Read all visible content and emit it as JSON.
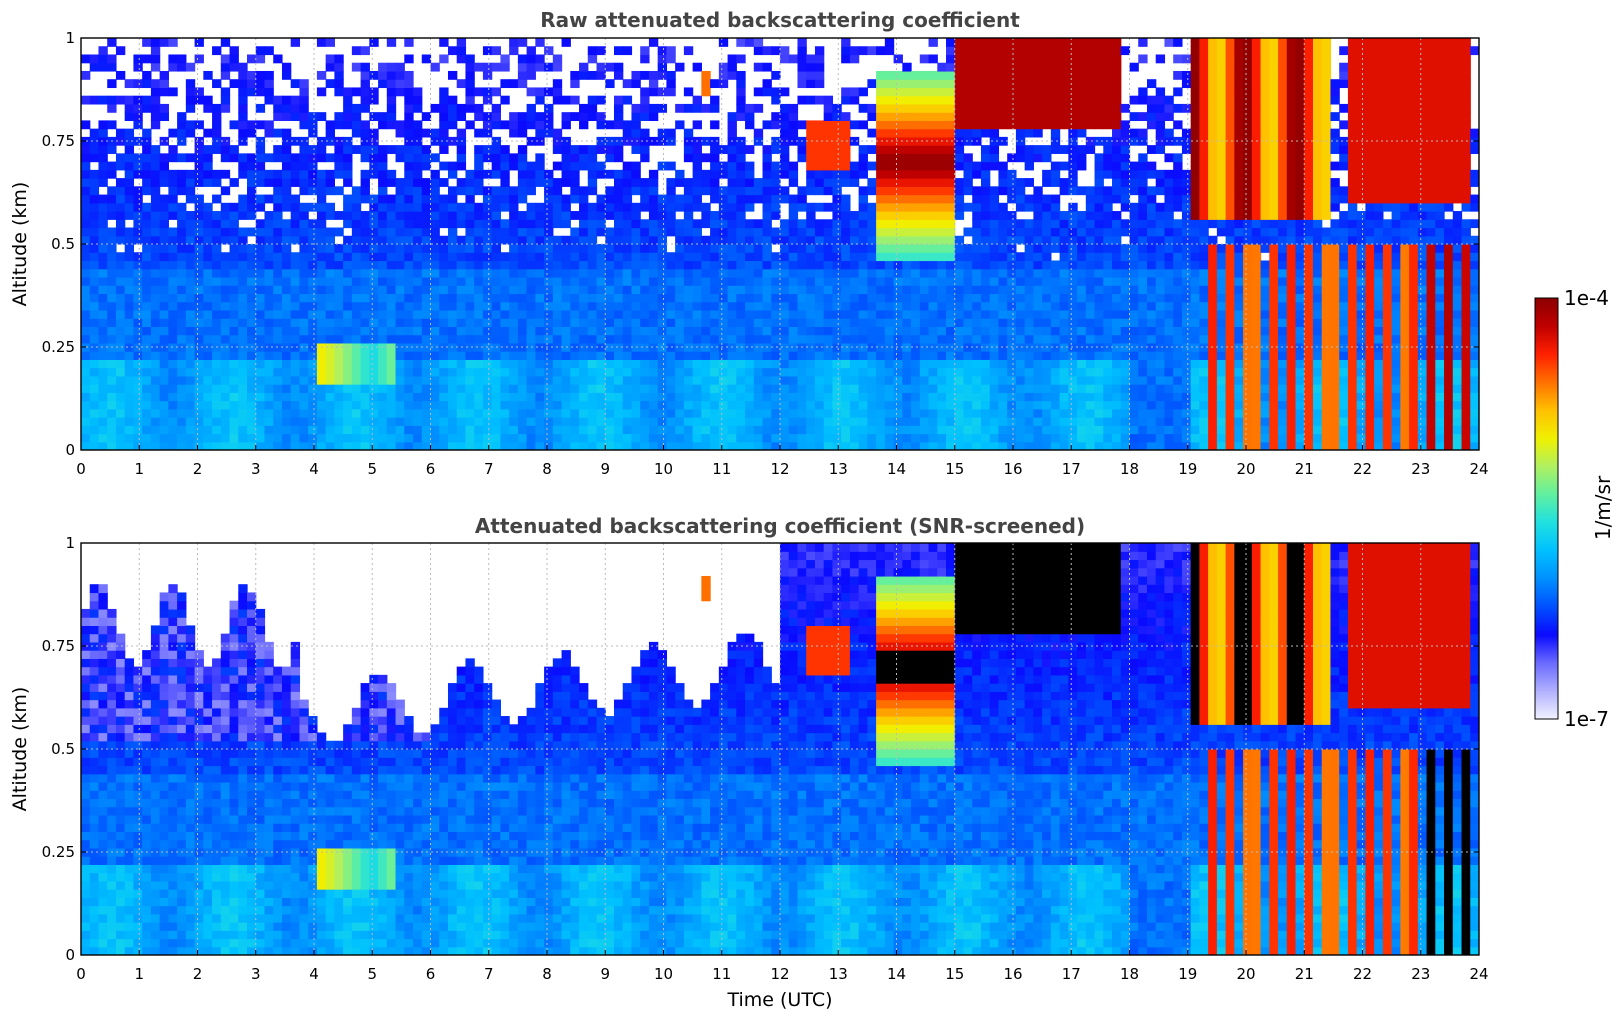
{
  "colormap": {
    "label": "1/m/sr",
    "max_label": "1e-4",
    "min_label": "1e-7",
    "stops": [
      "#f2f2ff",
      "#b0b0ff",
      "#6a6aff",
      "#0a0aff",
      "#0050ff",
      "#0090ff",
      "#00c0ff",
      "#20e0e0",
      "#60f0a0",
      "#b0f060",
      "#f0f000",
      "#ffc000",
      "#ff7000",
      "#ff2000",
      "#c00000",
      "#8b0000"
    ],
    "nan_color": "#ffffff",
    "saturation_color_screened": "#000000"
  },
  "chart_data": [
    {
      "type": "heatmap",
      "title": "Raw attenuated backscattering coefficient",
      "xlabel": "",
      "ylabel": "Altitude (km)",
      "xlim": [
        0,
        24
      ],
      "ylim": [
        0,
        1
      ],
      "xticks": [
        "0",
        "1",
        "2",
        "3",
        "4",
        "5",
        "6",
        "7",
        "8",
        "9",
        "10",
        "11",
        "12",
        "13",
        "14",
        "15",
        "16",
        "17",
        "18",
        "19",
        "20",
        "21",
        "22",
        "23",
        "24"
      ],
      "yticks": [
        "0",
        "0.25",
        "0.5",
        "0.75",
        "1"
      ],
      "grid": true,
      "units": "1/m/sr",
      "color_range": [
        "1e-7",
        "1e-4"
      ],
      "screened": false
    },
    {
      "type": "heatmap",
      "title": "Attenuated backscattering coefficient (SNR-screened)",
      "xlabel": "Time (UTC)",
      "ylabel": "Altitude (km)",
      "xlim": [
        0,
        24
      ],
      "ylim": [
        0,
        1
      ],
      "xticks": [
        "0",
        "1",
        "2",
        "3",
        "4",
        "5",
        "6",
        "7",
        "8",
        "9",
        "10",
        "11",
        "12",
        "13",
        "14",
        "15",
        "16",
        "17",
        "18",
        "19",
        "20",
        "21",
        "22",
        "23",
        "24"
      ],
      "yticks": [
        "0",
        "0.25",
        "0.5",
        "0.75",
        "1"
      ],
      "grid": true,
      "units": "1/m/sr",
      "color_range": [
        "1e-7",
        "1e-4"
      ],
      "screened": true
    }
  ]
}
